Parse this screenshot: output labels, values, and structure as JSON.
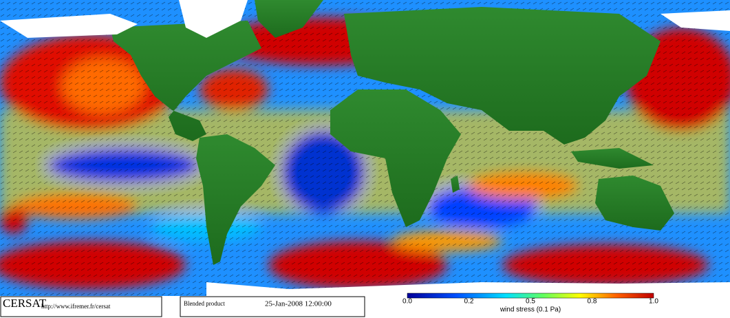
{
  "logo": {
    "name": "CERSAT",
    "url": "http://www.ifremer.fr/cersat"
  },
  "product": {
    "name": "Blended product",
    "datetime": "25-Jan-2008 12:00:00"
  },
  "colorbar": {
    "ticks": [
      "0.0",
      "0.2",
      "0.5",
      "0.8",
      "1.0"
    ],
    "label": "wind stress (0.1 Pa)"
  }
}
